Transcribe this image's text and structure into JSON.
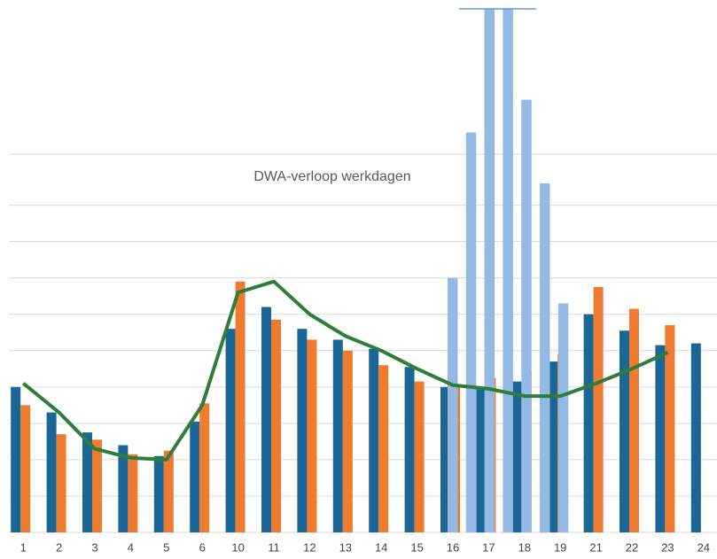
{
  "chart_data": [
    {
      "type": "bar",
      "title": "DWA-verloop werkdagen",
      "categories": [
        "1",
        "2",
        "3",
        "4",
        "5",
        "6",
        "10",
        "11",
        "12",
        "13",
        "14",
        "15",
        "16",
        "17",
        "18",
        "19",
        "21",
        "22",
        "23",
        "24"
      ],
      "series": [
        {
          "name": null,
          "type": "bar",
          "color": "#1a6696",
          "values": [
            4.0,
            3.3,
            2.75,
            2.4,
            2.1,
            3.05,
            5.6,
            6.2,
            5.6,
            5.3,
            5.05,
            4.55,
            4.0,
            4.0,
            4.15,
            4.7,
            6.0,
            5.55,
            5.15,
            5.2
          ]
        },
        {
          "name": null,
          "type": "bar",
          "color": "#ee7b30",
          "values": [
            3.5,
            2.7,
            2.55,
            2.15,
            2.25,
            3.55,
            6.9,
            5.85,
            5.3,
            5.0,
            4.6,
            4.15,
            4.0,
            4.25,
            4.45,
            4.9,
            6.75,
            6.15,
            5.7,
            null
          ]
        },
        {
          "name": null,
          "type": "line",
          "color": "#2e7d3a",
          "values": [
            4.1,
            3.3,
            2.3,
            2.05,
            2.0,
            3.5,
            6.6,
            6.9,
            6.0,
            5.4,
            5.0,
            4.5,
            4.05,
            3.95,
            3.75,
            3.75,
            4.1,
            4.5,
            4.95,
            null
          ]
        }
      ],
      "ylim": [
        0,
        14.4
      ],
      "yticks": [
        0,
        1,
        2,
        3,
        4,
        5,
        6,
        7,
        8,
        9,
        10.4
      ],
      "grid": true
    },
    {
      "type": "bar",
      "categories": [
        null,
        null,
        null,
        null,
        null,
        null,
        null
      ],
      "color": "#95b9e5",
      "values": [
        7.0,
        11.0,
        14.4,
        14.4,
        11.9,
        9.6,
        6.3
      ],
      "ylim": [
        0,
        14.4
      ]
    }
  ]
}
